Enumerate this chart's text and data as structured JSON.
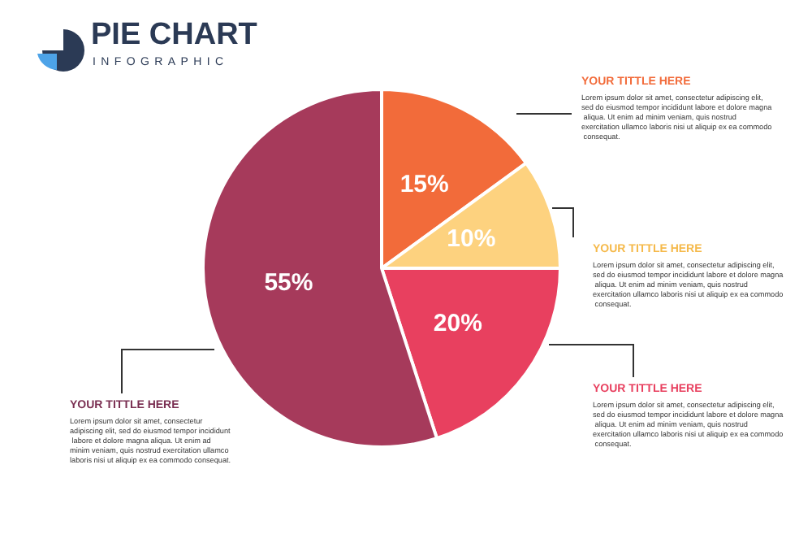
{
  "chart_data": {
    "type": "pie",
    "title": "PIE CHART",
    "subtitle": "INFOGRAPHIC",
    "categories": [
      null,
      null,
      null,
      null
    ],
    "values": [
      15,
      10,
      20,
      55
    ],
    "colors": [
      "#f26b3a",
      "#fdd27f",
      "#e8405f",
      "#a63a5b"
    ],
    "value_labels": [
      "15%",
      "10%",
      "20%",
      "55%"
    ],
    "annotations": [
      "YOUR TITTLE HERE",
      "Lorem ipsum dolor sit amet, consectetur adipiscing elit, sed do eiusmod tempor incididunt labore et dolore magna aliqua. Ut enim ad minim veniam, quis nostrud exercitation ullamco laboris nisi ut aliquip ex ea commodo consequat.",
      "YOUR TITTLE HERE",
      "Lorem ipsum dolor sit amet, consectetur adipiscing elit, sed do eiusmod tempor incididunt labore et dolore magna aliqua. Ut enim ad minim veniam, quis nostrud exercitation ullamco laboris nisi ut aliquip ex ea commodo consequat.",
      "YOUR TITTLE HERE",
      "Lorem ipsum dolor sit amet, consectetur adipiscing elit, sed do eiusmod tempor incididunt labore et dolore magna aliqua. Ut enim ad minim veniam, quis nostrud exercitation ullamco laboris nisi ut aliquip ex ea commodo consequat.",
      "YOUR TITTLE HERE",
      "Lorem ipsum dolor sit amet, consectetur adipiscing elit, sed do eiusmod tempor incididunt labore et dolore magna aliqua. Ut enim ad minim veniam, quis nostrud exercitation ullamco laboris nisi ut aliquip ex ea commodo consequat."
    ]
  }
}
